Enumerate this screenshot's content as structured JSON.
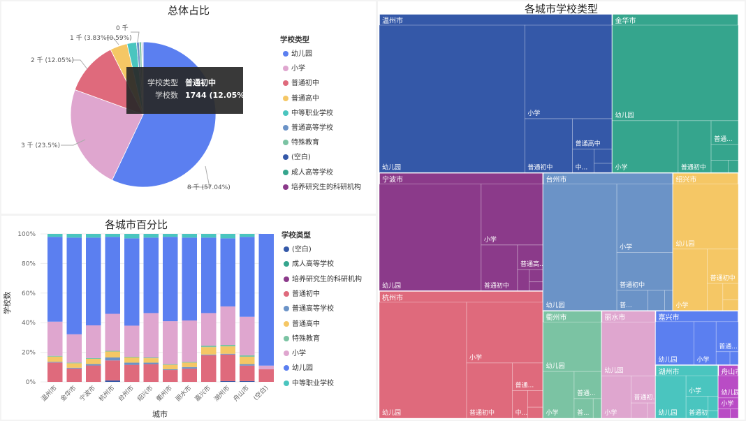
{
  "colors": {
    "幼儿园": "#5b7ff0",
    "小学": "#dfa6cf",
    "普通初中": "#df6a7c",
    "普通高中": "#f5c765",
    "中等职业学校": "#4ac5bf",
    "普通高等学校": "#6b93c7",
    "特殊教育": "#7bc3a3",
    "(空白)": "#3458a8",
    "成人高等学校": "#35a58d",
    "培养研究生的科研机构": "#8b3a8a"
  },
  "pie": {
    "title": "总体占比",
    "legend_title": "学校类型",
    "tooltip": {
      "k1": "学校类型",
      "v1": "普通初中",
      "k2": "学校数",
      "v2": "1744 (12.05%)"
    },
    "labels": {
      "yey": "8 千 (57.04%)",
      "xx": "3 千 (23.5%)",
      "cz": "2 千 (12.05%)",
      "gz": "1 千 (3.83%)",
      "zz": "(0.59%)",
      "zero": "0 千"
    }
  },
  "bar": {
    "title": "各城市百分比",
    "legend_title": "学校类型",
    "xlabel": "城市",
    "ylabel": "学校数",
    "yticks": [
      "0%",
      "20%",
      "40%",
      "60%",
      "80%",
      "100%"
    ]
  },
  "tree": {
    "title": "各城市学校类型"
  },
  "chart_data": [
    {
      "type": "pie",
      "title": "总体占比",
      "legend_title": "学校类型",
      "legend": [
        "幼儿园",
        "小学",
        "普通初中",
        "普通高中",
        "中等职业学校",
        "普通高等学校",
        "特殊教育",
        "(空白)",
        "成人高等学校",
        "培养研究生的科研机构"
      ],
      "slices": [
        {
          "name": "幼儿园",
          "value": 57.04
        },
        {
          "name": "小学",
          "value": 23.5
        },
        {
          "name": "普通初中",
          "value": 12.05
        },
        {
          "name": "普通高中",
          "value": 3.83
        },
        {
          "name": "中等职业学校",
          "value": 2.1
        },
        {
          "name": "普通高等学校",
          "value": 0.59
        },
        {
          "name": "特殊教育",
          "value": 0.5
        },
        {
          "name": "(空白)",
          "value": 0.2
        },
        {
          "name": "成人高等学校",
          "value": 0.12
        },
        {
          "name": "培养研究生的科研机构",
          "value": 0.07
        }
      ]
    },
    {
      "type": "bar",
      "stacked_percent": true,
      "title": "各城市百分比",
      "xlabel": "城市",
      "ylabel": "学校数",
      "ylim": [
        0,
        100
      ],
      "legend_title": "学校类型",
      "legend": [
        "(空白)",
        "成人高等学校",
        "培养研究生的科研机构",
        "普通初中",
        "普通高等学校",
        "普通高中",
        "特殊教育",
        "小学",
        "幼儿园",
        "中等职业学校"
      ],
      "categories": [
        "温州市",
        "金华市",
        "宁波市",
        "杭州市",
        "台州市",
        "绍兴市",
        "衢州市",
        "丽水市",
        "嘉兴市",
        "湖州市",
        "舟山市",
        "(空白)"
      ],
      "series": [
        {
          "name": "(空白)",
          "values": [
            0,
            0,
            0,
            1,
            0,
            0,
            0,
            0,
            0,
            0.5,
            0.5,
            0
          ]
        },
        {
          "name": "普通初中",
          "values": [
            13,
            9,
            11,
            13.5,
            11.5,
            12,
            8,
            9,
            18,
            18,
            10.5,
            8.5
          ]
        },
        {
          "name": "普通高等学校",
          "values": [
            0.5,
            0.5,
            1,
            2,
            1.5,
            1,
            0.5,
            1,
            0.5,
            0.5,
            1,
            0
          ]
        },
        {
          "name": "普通高中",
          "values": [
            3.5,
            3,
            3.5,
            4,
            3.5,
            3,
            3,
            3,
            5,
            5,
            5,
            0
          ]
        },
        {
          "name": "特殊教育",
          "values": [
            0.5,
            0.5,
            0.5,
            0.5,
            0.5,
            0.5,
            0.5,
            0.5,
            1,
            1,
            1,
            0
          ]
        },
        {
          "name": "小学",
          "values": [
            23,
            19,
            22,
            25,
            21,
            30,
            29,
            28,
            22,
            26,
            26,
            2.5
          ]
        },
        {
          "name": "幼儿园",
          "values": [
            57,
            65,
            59,
            52,
            59,
            51,
            57,
            56,
            51,
            46,
            54,
            89
          ]
        },
        {
          "name": "中等职业学校",
          "values": [
            2,
            2.5,
            2.5,
            2,
            3,
            2.5,
            2,
            2.5,
            2.5,
            3,
            2,
            0
          ]
        }
      ]
    },
    {
      "type": "treemap",
      "title": "各城市学校类型",
      "groups": [
        {
          "name": "温州市",
          "children": [
            {
              "name": "幼儿园",
              "value": 5000
            },
            {
              "name": "小学",
              "value": 1900
            },
            {
              "name": "普通初中",
              "value": 600
            },
            {
              "name": "普通高中",
              "value": 280
            },
            {
              "name": "中...",
              "value": 120
            },
            {
              "name": "",
              "value": 60
            },
            {
              "name": "",
              "value": 40
            }
          ]
        },
        {
          "name": "金华市",
          "children": [
            {
              "name": "幼儿园",
              "value": 2800
            },
            {
              "name": "小学",
              "value": 800
            },
            {
              "name": "普通初中",
              "value": 400
            },
            {
              "name": "普通...",
              "value": 150
            },
            {
              "name": "",
              "value": 100
            },
            {
              "name": "",
              "value": 50
            },
            {
              "name": "",
              "value": 30
            }
          ]
        },
        {
          "name": "宁波市",
          "children": [
            {
              "name": "幼儿园",
              "value": 2600
            },
            {
              "name": "小学",
              "value": 900
            },
            {
              "name": "普通初中",
              "value": 400
            },
            {
              "name": "普通高...",
              "value": 150
            },
            {
              "name": "...",
              "value": 60
            },
            {
              "name": "",
              "value": 40
            },
            {
              "name": "",
              "value": 30
            }
          ]
        },
        {
          "name": "杭州市",
          "children": [
            {
              "name": "幼儿园",
              "value": 2400
            },
            {
              "name": "小学",
              "value": 1100
            },
            {
              "name": "普通初中",
              "value": 600
            },
            {
              "name": "普通...",
              "value": 200
            },
            {
              "name": "中...",
              "value": 100
            },
            {
              "name": "",
              "value": 60
            },
            {
              "name": "",
              "value": 40
            }
          ]
        },
        {
          "name": "台州市",
          "children": [
            {
              "name": "幼儿园",
              "value": 2200
            },
            {
              "name": "小学",
              "value": 900
            },
            {
              "name": "普通初中",
              "value": 500
            },
            {
              "name": "普...",
              "value": 150
            },
            {
              "name": "",
              "value": 80
            },
            {
              "name": "",
              "value": 40
            }
          ]
        },
        {
          "name": "绍兴市",
          "children": [
            {
              "name": "幼儿园",
              "value": 1000
            },
            {
              "name": "小学",
              "value": 500
            },
            {
              "name": "普通初中",
              "value": 250
            },
            {
              "name": "",
              "value": 100
            },
            {
              "name": "",
              "value": 60
            },
            {
              "name": "",
              "value": 40
            }
          ]
        },
        {
          "name": "衢州市",
          "children": [
            {
              "name": "幼儿园",
              "value": 700
            },
            {
              "name": "小学",
              "value": 350
            },
            {
              "name": "普通...",
              "value": 180
            },
            {
              "name": "普...",
              "value": 90
            },
            {
              "name": "",
              "value": 40
            }
          ]
        },
        {
          "name": "丽水市",
          "children": [
            {
              "name": "幼儿园",
              "value": 700
            },
            {
              "name": "小学",
              "value": 300
            },
            {
              "name": "普通初...",
              "value": 160
            },
            {
              "name": "",
              "value": 60
            },
            {
              "name": "",
              "value": 30
            }
          ]
        },
        {
          "name": "嘉兴市",
          "children": [
            {
              "name": "幼儿园",
              "value": 450
            },
            {
              "name": "小学",
              "value": 260
            },
            {
              "name": "普通...",
              "value": 180
            },
            {
              "name": "",
              "value": 50
            },
            {
              "name": "",
              "value": 30
            }
          ]
        },
        {
          "name": "湖州市",
          "children": [
            {
              "name": "幼儿园",
              "value": 350
            },
            {
              "name": "小学",
              "value": 180
            },
            {
              "name": "普通初中",
              "value": 130
            },
            {
              "name": "...",
              "value": 40
            },
            {
              "name": "",
              "value": 20
            }
          ]
        },
        {
          "name": "舟山市",
          "children": [
            {
              "name": "幼儿园",
              "value": 120
            },
            {
              "name": "小学",
              "value": 60
            },
            {
              "name": "",
              "value": 30
            },
            {
              "name": "",
              "value": 20
            }
          ]
        }
      ]
    }
  ]
}
